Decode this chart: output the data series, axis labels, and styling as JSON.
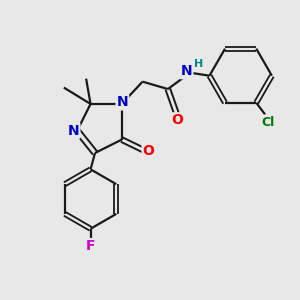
{
  "bg_color": "#e8e8e8",
  "bond_color": "#1a1a1a",
  "atom_colors": {
    "N": "#0000cc",
    "O": "#ff0000",
    "F": "#cc00cc",
    "Cl": "#007700",
    "H": "#008888",
    "C": "#1a1a1a"
  },
  "figsize": [
    3.0,
    3.0
  ],
  "dpi": 100,
  "lw": 1.6
}
